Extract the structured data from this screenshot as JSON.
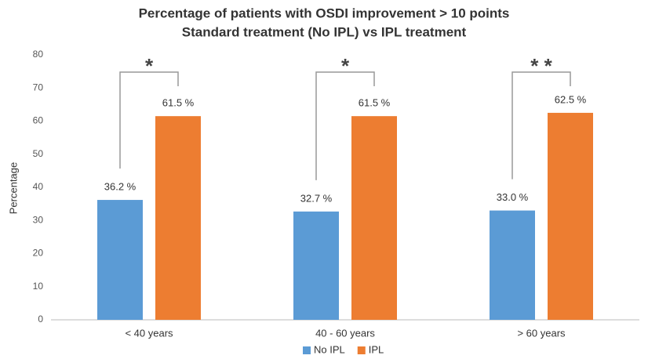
{
  "chart_data": {
    "type": "bar",
    "title": "Percentage of patients with OSDI improvement > 10 points",
    "subtitle": "Standard treatment (No IPL) vs IPL treatment",
    "y_label": "Percentage",
    "categories": [
      "< 40 years",
      "40 - 60 years",
      "> 60 years"
    ],
    "series": [
      {
        "name": "No IPL",
        "color": "#5b9bd5",
        "values": [
          36.2,
          32.7,
          33.0
        ],
        "value_labels": [
          "36.2 %",
          "32.7 %",
          "33.0 %"
        ]
      },
      {
        "name": "IPL",
        "color": "#ed7d31",
        "values": [
          61.5,
          61.5,
          62.5
        ],
        "value_labels": [
          "61.5 %",
          "61.5 %",
          "62.5 %"
        ]
      }
    ],
    "annotations": [
      "*",
      "*",
      "* *"
    ],
    "ylim": [
      0,
      80
    ],
    "yticks": [
      0,
      10,
      20,
      30,
      40,
      50,
      60,
      70,
      80
    ],
    "grid": false,
    "legend": "bottom"
  }
}
